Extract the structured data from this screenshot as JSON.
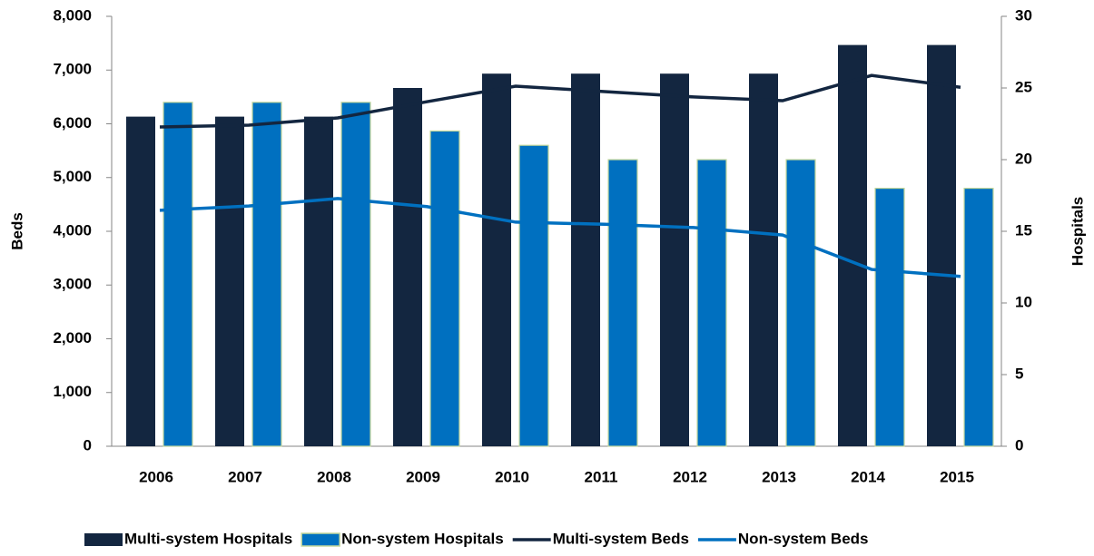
{
  "chart_data": {
    "type": "bar-line",
    "categories": [
      "2006",
      "2007",
      "2008",
      "2009",
      "2010",
      "2011",
      "2012",
      "2013",
      "2014",
      "2015"
    ],
    "y_label": "Beds",
    "y2_label": "Hospitals",
    "ylim": [
      0,
      8000
    ],
    "yticks": [
      0,
      {
        "value": 1000,
        "label": "1,000"
      },
      {
        "value": 2000,
        "label": "2,000"
      },
      {
        "value": 3000,
        "label": "3,000"
      },
      {
        "value": 4000,
        "label": "4,000"
      },
      {
        "value": 5000,
        "label": "5,000"
      },
      {
        "value": 6000,
        "label": "6,000"
      },
      {
        "value": 7000,
        "label": "7,000"
      },
      {
        "value": 8000,
        "label": "8,000"
      }
    ],
    "y2lim": [
      0,
      30
    ],
    "y2ticks": [
      0,
      5,
      10,
      15,
      20,
      25,
      30
    ],
    "series": [
      {
        "name": "Multi-system Hospitals",
        "kind": "bar",
        "axis": "y2",
        "color": "#132640",
        "values": [
          23,
          23,
          23,
          25,
          26,
          26,
          26,
          26,
          28,
          28
        ]
      },
      {
        "name": "Non-system Hospitals",
        "kind": "bar",
        "axis": "y2",
        "color": "#0070c0",
        "edge": "#c4d79b",
        "values": [
          24,
          24,
          24,
          22,
          21,
          20,
          20,
          20,
          18,
          18
        ]
      },
      {
        "name": "Multi-system Beds",
        "kind": "line",
        "color": "#132640",
        "values": [
          5940,
          5975,
          6110,
          6410,
          6700,
          6600,
          6500,
          6430,
          6900,
          6680
        ]
      },
      {
        "name": "Non-system Beds",
        "kind": "line",
        "color": "#0070c0",
        "values": [
          4390,
          4470,
          4610,
          4460,
          4170,
          4130,
          4070,
          3930,
          3290,
          3160
        ]
      }
    ]
  }
}
